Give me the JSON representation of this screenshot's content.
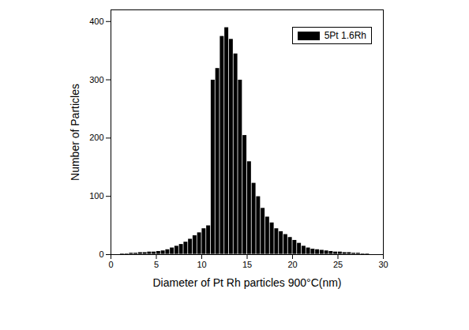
{
  "chart_data": {
    "type": "histogram",
    "xlabel": "Diameter of Pt Rh particles 900°C(nm)",
    "ylabel": "Number of Particles",
    "bins": [
      0,
      0.5,
      1,
      1.5,
      2,
      2.5,
      3,
      3.5,
      4,
      4.5,
      5,
      5.5,
      6,
      6.5,
      7,
      7.5,
      8,
      8.5,
      9,
      9.5,
      10,
      10.5,
      11,
      11.5,
      12,
      12.5,
      13,
      13.5,
      14,
      14.5,
      15,
      15.5,
      16,
      16.5,
      17,
      17.5,
      18,
      18.5,
      19,
      19.5,
      20,
      20.5,
      21,
      21.5,
      22,
      22.5,
      23,
      23.5,
      24,
      24.5,
      25,
      25.5,
      26,
      26.5,
      27,
      27.5,
      28,
      28.5,
      29,
      29.5,
      30
    ],
    "series": [
      {
        "name": "5Pt 1.6Rh",
        "color": "#000000",
        "values": [
          1,
          1,
          2,
          2,
          3,
          3,
          4,
          4,
          5,
          5,
          6,
          7,
          9,
          12,
          15,
          18,
          22,
          27,
          33,
          38,
          45,
          50,
          300,
          320,
          375,
          390,
          370,
          345,
          300,
          205,
          160,
          123,
          100,
          80,
          65,
          55,
          45,
          40,
          35,
          30,
          25,
          20,
          15,
          12,
          10,
          9,
          8,
          7,
          6,
          5,
          5,
          4,
          4,
          3,
          3,
          2,
          2,
          1,
          1,
          0
        ]
      }
    ],
    "xlim": [
      0,
      30
    ],
    "xticks": [
      0,
      5,
      10,
      15,
      20,
      25,
      30
    ],
    "ylim": [
      0,
      420
    ],
    "yticks": [
      0,
      100,
      200,
      300,
      400
    ],
    "legend": "top-right",
    "grid": false
  }
}
